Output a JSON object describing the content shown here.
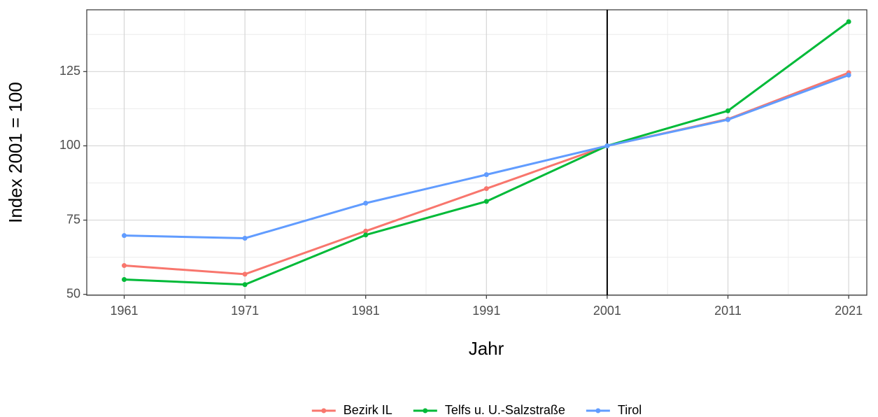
{
  "chart_data": {
    "type": "line",
    "x_label": "Jahr",
    "y_label": "Index 2001 = 100",
    "x": [
      1961,
      1971,
      1981,
      1991,
      2001,
      2011,
      2021
    ],
    "series": [
      {
        "name": "Bezirk IL",
        "color": "#F8766D",
        "values": [
          59.7,
          56.8,
          71.3,
          85.6,
          100,
          109,
          124.6
        ]
      },
      {
        "name": "Telfs u. U.-Salzstraße",
        "color": "#00BA38",
        "values": [
          55,
          53.3,
          70,
          81.3,
          100,
          111.8,
          141.8
        ]
      },
      {
        "name": "Tirol",
        "color": "#619CFF",
        "values": [
          69.8,
          68.9,
          80.7,
          90.3,
          100,
          108.8,
          123.8
        ]
      }
    ],
    "xlim": [
      1957.9,
      2022.5
    ],
    "xticks": [
      1961,
      1971,
      1981,
      1991,
      2001,
      2011,
      2021
    ],
    "ylim": [
      49.7,
      145.8
    ],
    "yticks": [
      50,
      75,
      100,
      125
    ],
    "vline": 2001,
    "grid": true,
    "legend": "bottom"
  }
}
